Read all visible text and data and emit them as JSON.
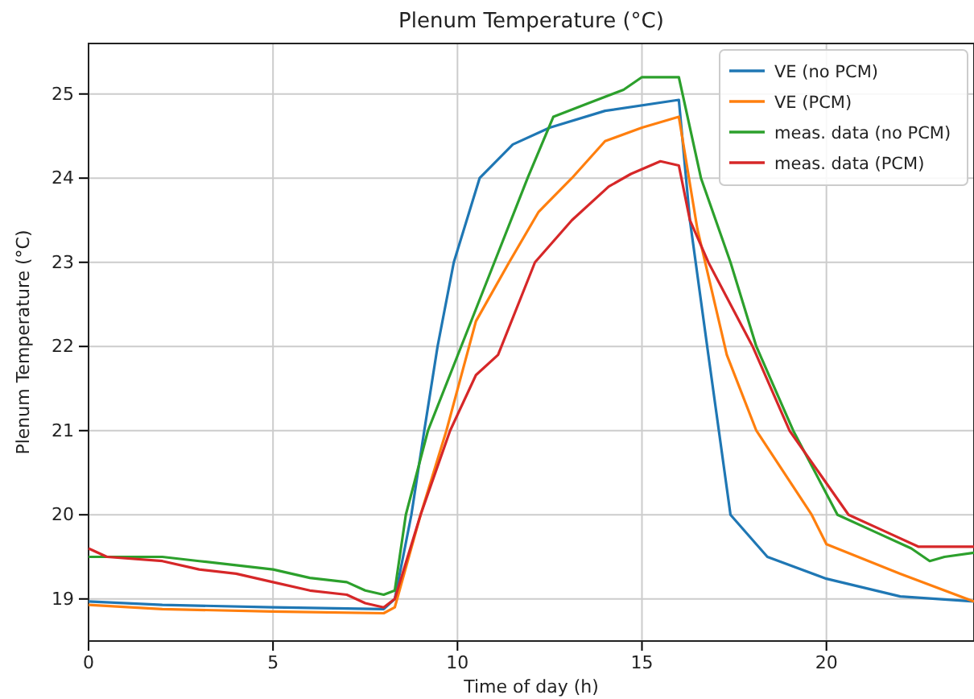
{
  "chart_data": {
    "type": "line",
    "title": "Plenum Temperature (°C)",
    "xlabel": "Time of day (h)",
    "ylabel": "Plenum Temperature (°C)",
    "xlim": [
      0,
      24
    ],
    "ylim": [
      18.5,
      25.6
    ],
    "xticks": [
      0,
      5,
      10,
      15,
      20
    ],
    "yticks": [
      19,
      20,
      21,
      22,
      23,
      24,
      25
    ],
    "grid": true,
    "legend": "top right",
    "series": [
      {
        "name": "VE (no PCM)",
        "color": "#1f77b4",
        "x": [
          0,
          2,
          5,
          8,
          8.3,
          8.75,
          9.1,
          9.46,
          9.9,
          10.6,
          11.5,
          12.5,
          14,
          16,
          16.3,
          16.8,
          17.4,
          18.4,
          20,
          22,
          24
        ],
        "values": [
          18.97,
          18.93,
          18.9,
          18.88,
          19.0,
          20,
          21,
          22,
          23,
          24,
          24.4,
          24.6,
          24.8,
          24.93,
          23.5,
          21.9,
          20,
          19.5,
          19.24,
          19.03,
          18.97
        ]
      },
      {
        "name": "VE (PCM)",
        "color": "#ff7f0e",
        "x": [
          0,
          2,
          5,
          8,
          8.3,
          9.0,
          9.7,
          10.5,
          11.4,
          12.2,
          13.1,
          14,
          15,
          16,
          16.5,
          17.3,
          18.1,
          19.6,
          20,
          22,
          24
        ],
        "values": [
          18.93,
          18.88,
          18.85,
          18.83,
          18.9,
          20,
          21,
          22.3,
          23,
          23.6,
          24,
          24.44,
          24.6,
          24.73,
          23.4,
          21.9,
          21,
          20,
          19.65,
          19.3,
          18.97
        ]
      },
      {
        "name": "meas. data (no PCM)",
        "color": "#2ca02c",
        "x": [
          0,
          2,
          3,
          4,
          5,
          6,
          7,
          7.5,
          8,
          8.3,
          8.6,
          9.2,
          10.1,
          11,
          11.9,
          12.6,
          13.6,
          14.5,
          15,
          16,
          16.1,
          16.6,
          17.4,
          18.1,
          19.1,
          20.3,
          21.3,
          22.3,
          22.8,
          23.2,
          24
        ],
        "values": [
          19.5,
          19.5,
          19.45,
          19.4,
          19.35,
          19.25,
          19.2,
          19.1,
          19.05,
          19.1,
          20,
          21,
          22,
          23,
          24,
          24.73,
          24.9,
          25.05,
          25.2,
          25.2,
          25,
          24,
          23,
          22,
          21,
          20,
          19.8,
          19.6,
          19.45,
          19.5,
          19.55
        ]
      },
      {
        "name": "meas. data (PCM)",
        "color": "#d62728",
        "x": [
          0,
          0.5,
          2,
          3,
          4,
          5,
          6,
          7,
          7.5,
          8,
          8.3,
          9.0,
          9.8,
          10.5,
          11.1,
          12.1,
          13.1,
          14.1,
          14.7,
          15.5,
          16,
          16.3,
          16.8,
          18,
          19,
          20.6,
          21.6,
          22.5,
          24
        ],
        "values": [
          19.6,
          19.5,
          19.45,
          19.35,
          19.3,
          19.2,
          19.1,
          19.05,
          18.95,
          18.9,
          19.0,
          20,
          21,
          21.66,
          21.9,
          23,
          23.5,
          23.9,
          24.05,
          24.2,
          24.15,
          23.5,
          23,
          22,
          21,
          20,
          19.8,
          19.62,
          19.62
        ]
      }
    ]
  }
}
